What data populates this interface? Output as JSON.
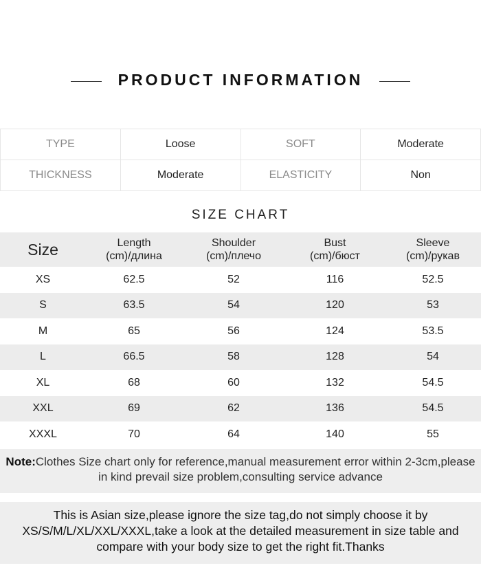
{
  "title": "PRODUCT INFORMATION",
  "attributes": [
    [
      {
        "key": "TYPE",
        "value": "Loose"
      },
      {
        "key": "SOFT",
        "value": "Moderate"
      }
    ],
    [
      {
        "key": "THICKNESS",
        "value": "Moderate"
      },
      {
        "key": "ELASTICITY",
        "value": "Non"
      }
    ]
  ],
  "size_chart": {
    "title": "SIZE CHART",
    "headers": [
      {
        "l1": "Size",
        "l2": ""
      },
      {
        "l1": "Length",
        "l2": "(cm)/длина"
      },
      {
        "l1": "Shoulder",
        "l2": "(cm)/плечо"
      },
      {
        "l1": "Bust",
        "l2": "(cm)/бюст"
      },
      {
        "l1": "Sleeve",
        "l2": "(cm)/рукав"
      }
    ],
    "rows": [
      [
        "XS",
        "62.5",
        "52",
        "116",
        "52.5"
      ],
      [
        "S",
        "63.5",
        "54",
        "120",
        "53"
      ],
      [
        "M",
        "65",
        "56",
        "124",
        "53.5"
      ],
      [
        "L",
        "66.5",
        "58",
        "128",
        "54"
      ],
      [
        "XL",
        "68",
        "60",
        "132",
        "54.5"
      ],
      [
        "XXL",
        "69",
        "62",
        "136",
        "54.5"
      ],
      [
        "XXXL",
        "70",
        "64",
        "140",
        "55"
      ]
    ]
  },
  "note": {
    "label": "Note:",
    "text": "Clothes Size chart only for reference,manual measurement error within 2-3cm,please in kind prevail size problem,consulting service advance"
  },
  "asian_notice": "This is Asian size,please ignore the size tag,do not simply choose it by XS/S/M/L/XL/XXL/XXXL,take a look at the detailed measurement in size table and compare with your body size to get the right fit.Thanks"
}
